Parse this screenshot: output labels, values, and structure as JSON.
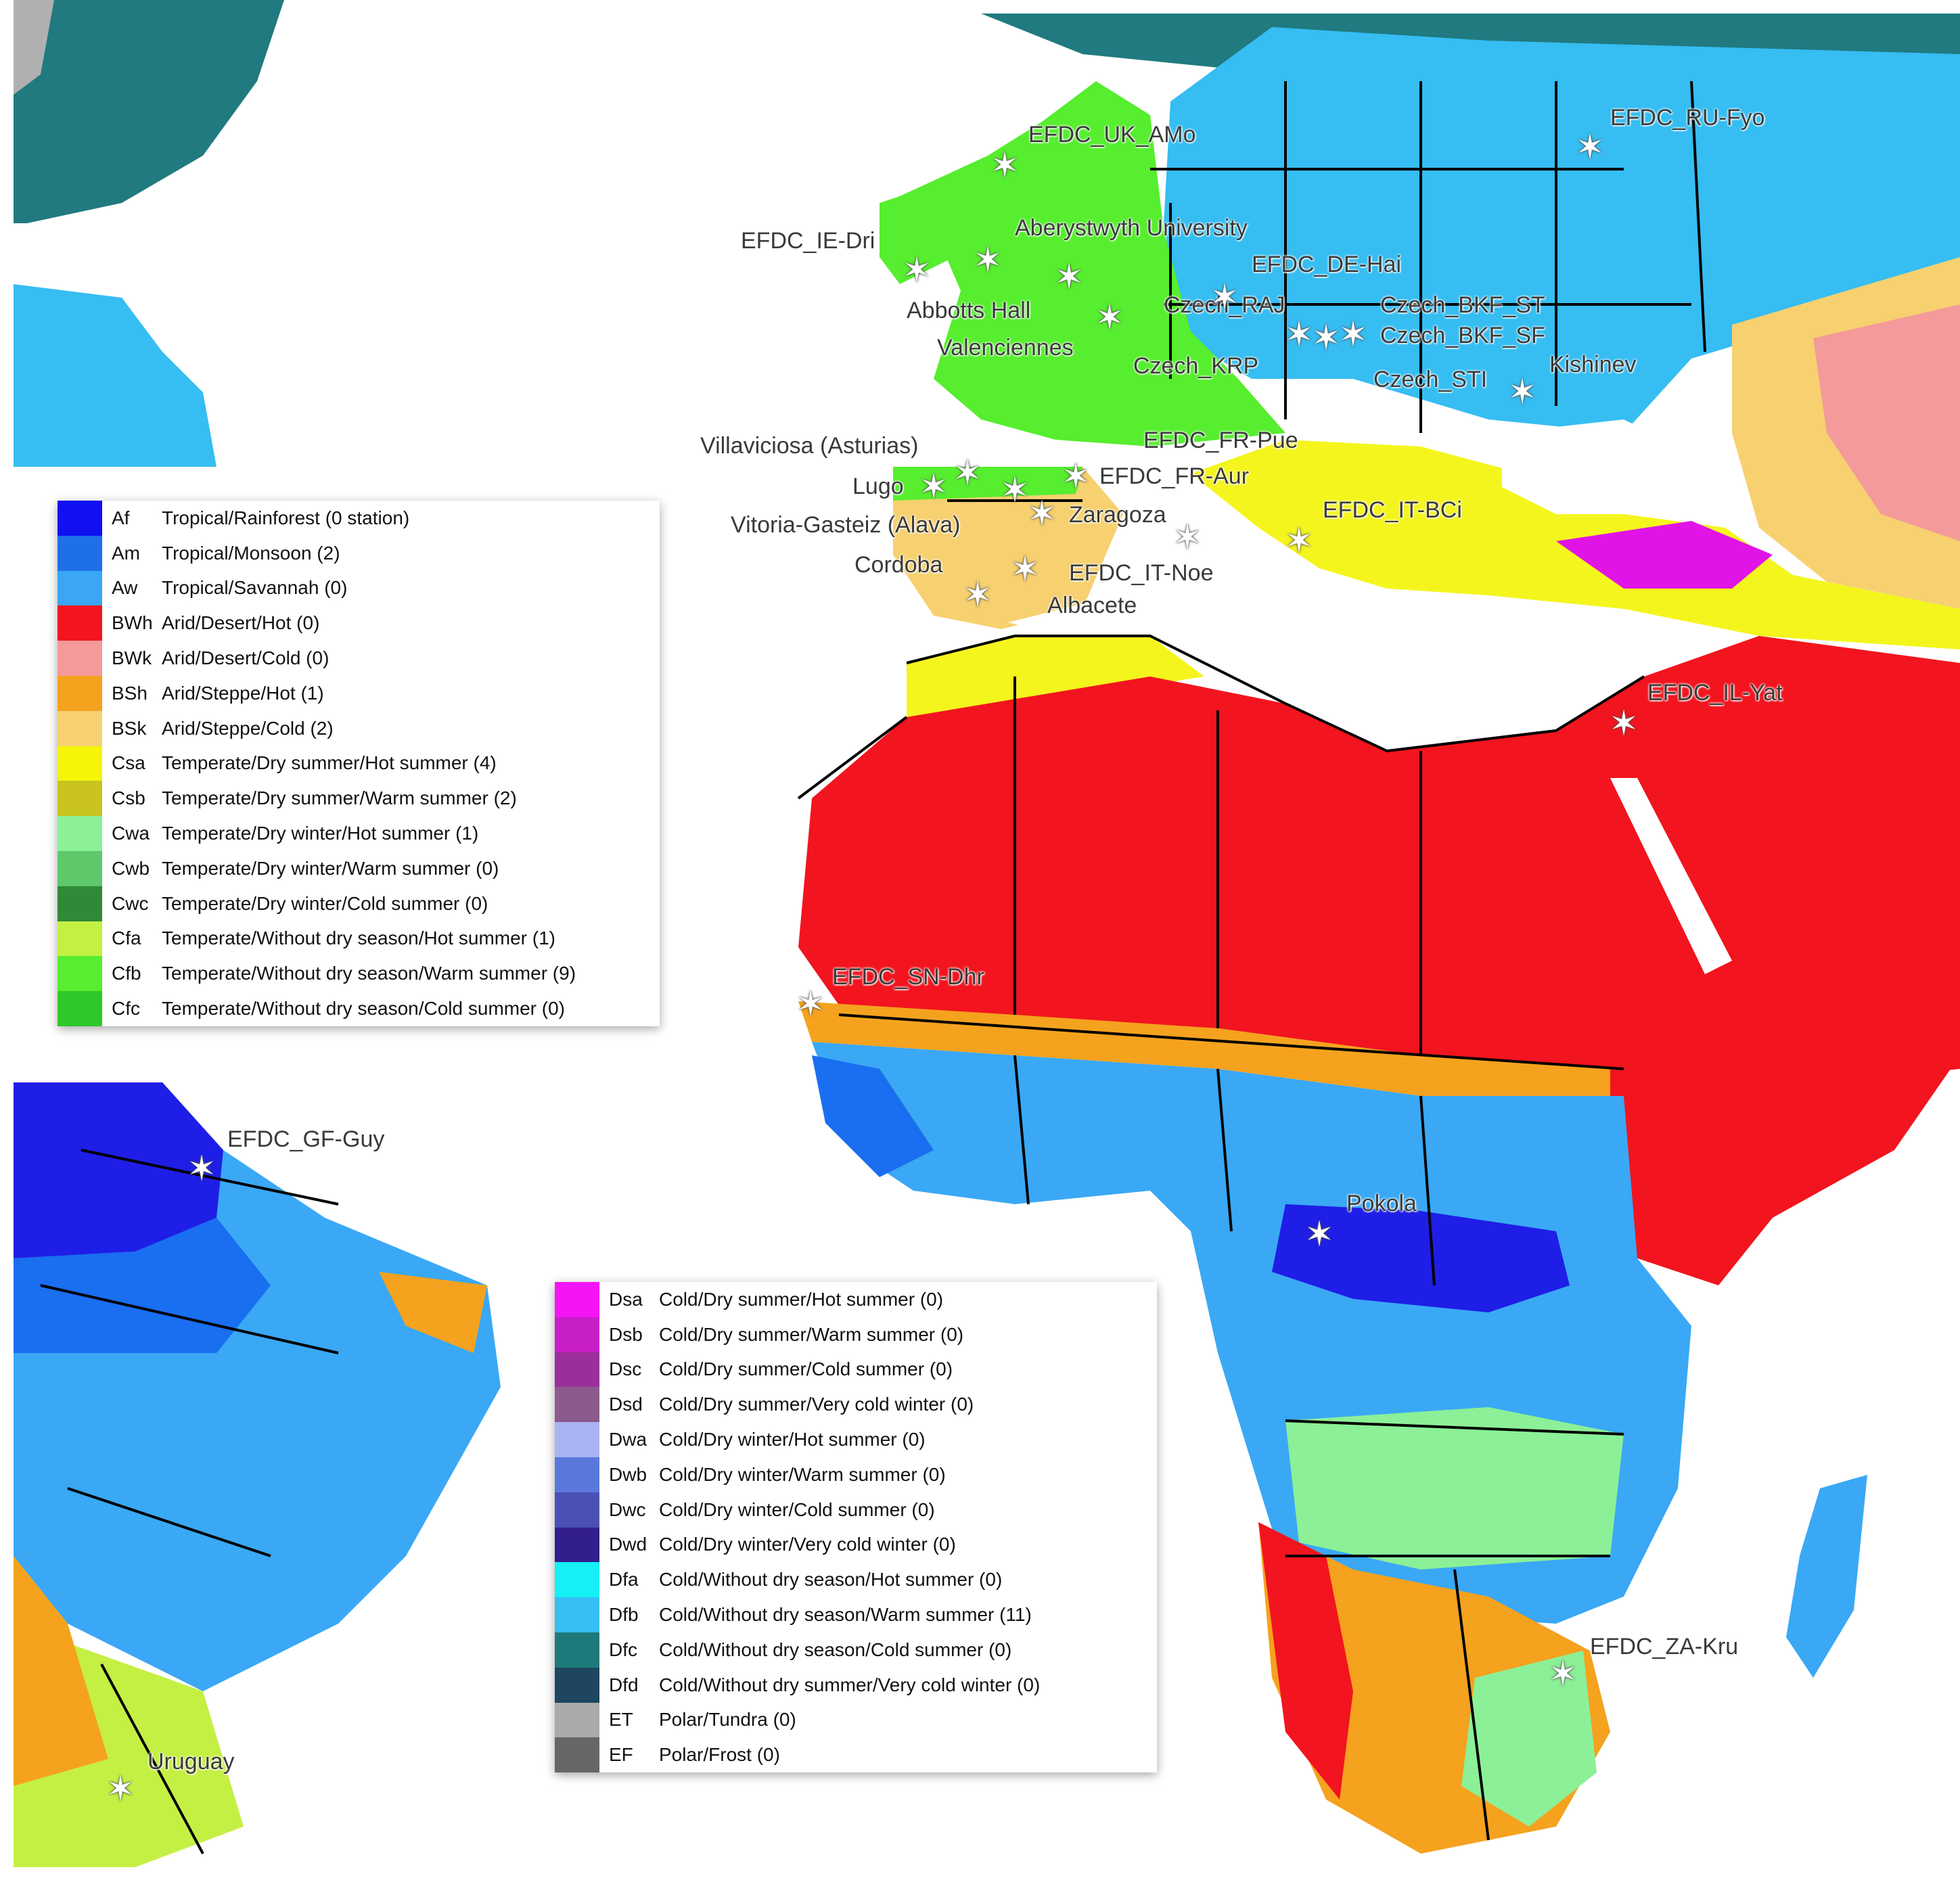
{
  "map": {
    "climate_colors": {
      "Af": "#1e1ee6",
      "Am": "#1a6ef0",
      "Aw": "#3aa8f5",
      "BWh": "#f2141e",
      "BWk": "#f59a9a",
      "BSh": "#f5a21e",
      "BSk": "#f7d070",
      "Csa": "#f5f51e",
      "Csb": "#c9c428",
      "Cwa": "#8cf098",
      "Cwb": "#5cc86a",
      "Cwc": "#2e8a36",
      "Cfa": "#c4f044",
      "Cfb": "#56ee2e",
      "Cfc": "#2ec828",
      "Dfb": "#36bdf2",
      "Dfc": "#207a80",
      "ET": "#b0b0b0",
      "water": "#ffffff",
      "border": "#000000"
    }
  },
  "legend_top": [
    {
      "code": "Af",
      "label": "Tropical/Rainforest (0 station)",
      "color": "#1010f0"
    },
    {
      "code": "Am",
      "label": "Tropical/Monsoon (2)",
      "color": "#1f6fe8"
    },
    {
      "code": "Aw",
      "label": "Tropical/Savannah (0)",
      "color": "#3aa6f5"
    },
    {
      "code": "BWh",
      "label": "Arid/Desert/Hot (0)",
      "color": "#f2141e"
    },
    {
      "code": "BWk",
      "label": "Arid/Desert/Cold (0)",
      "color": "#f59a9a"
    },
    {
      "code": "BSh",
      "label": "Arid/Steppe/Hot (1)",
      "color": "#f5a21e"
    },
    {
      "code": "BSk",
      "label": "Arid/Steppe/Cold (2)",
      "color": "#f7d070"
    },
    {
      "code": "Csa",
      "label": "Temperate/Dry summer/Hot summer (4)",
      "color": "#f5f50a"
    },
    {
      "code": "Csb",
      "label": "Temperate/Dry summer/Warm summer (2)",
      "color": "#c8c31e"
    },
    {
      "code": "Cwa",
      "label": "Temperate/Dry winter/Hot summer (1)",
      "color": "#8cf098"
    },
    {
      "code": "Cwb",
      "label": "Temperate/Dry winter/Warm summer (0)",
      "color": "#5ec86a"
    },
    {
      "code": "Cwc",
      "label": "Temperate/Dry winter/Cold summer (0)",
      "color": "#2e8a36"
    },
    {
      "code": "Cfa",
      "label": "Temperate/Without dry season/Hot summer (1)",
      "color": "#c4f044"
    },
    {
      "code": "Cfb",
      "label": "Temperate/Without dry season/Warm summer (9)",
      "color": "#56ee2e"
    },
    {
      "code": "Cfc",
      "label": "Temperate/Without dry season/Cold summer (0)",
      "color": "#2ec828"
    }
  ],
  "legend_bottom": [
    {
      "code": "Dsa",
      "label": "Cold/Dry summer/Hot summer (0)",
      "color": "#f514f5"
    },
    {
      "code": "Dsb",
      "label": "Cold/Dry summer/Warm summer (0)",
      "color": "#c81ec8"
    },
    {
      "code": "Dsc",
      "label": "Cold/Dry summer/Cold summer (0)",
      "color": "#9a2e9a"
    },
    {
      "code": "Dsd",
      "label": "Cold/Dry summer/Very cold winter (0)",
      "color": "#8c5a8c"
    },
    {
      "code": "Dwa",
      "label": "Cold/Dry winter/Hot summer (0)",
      "color": "#aab4f5"
    },
    {
      "code": "Dwb",
      "label": "Cold/Dry winter/Warm summer (0)",
      "color": "#5a78dc"
    },
    {
      "code": "Dwc",
      "label": "Cold/Dry winter/Cold summer (0)",
      "color": "#4b50b4"
    },
    {
      "code": "Dwd",
      "label": "Cold/Dry winter/Very cold winter (0)",
      "color": "#321e8c"
    },
    {
      "code": "Dfa",
      "label": "Cold/Without dry season/Hot summer (0)",
      "color": "#14f0f5"
    },
    {
      "code": "Dfb",
      "label": "Cold/Without dry season/Warm summer (11)",
      "color": "#36bdf2"
    },
    {
      "code": "Dfc",
      "label": "Cold/Without dry season/Cold summer (0)",
      "color": "#1e7a7a"
    },
    {
      "code": "Dfd",
      "label": "Cold/Without dry summer/Very cold winter (0)",
      "color": "#1e4660"
    },
    {
      "code": "ET",
      "label": "Polar/Tundra (0)",
      "color": "#aaaaaa"
    },
    {
      "code": "EF",
      "label": "Polar/Frost (0)",
      "color": "#666666"
    }
  ],
  "sites": {
    "uk_amo": "EFDC_UK_AMo",
    "ru_fyo": "EFDC_RU-Fyo",
    "aberystwyth": "Aberystwyth University",
    "ie_dri": "EFDC_IE-Dri",
    "de_hai": "EFDC_DE-Hai",
    "abbotts": "Abbotts Hall",
    "czech_raj": "Czech_RAJ",
    "czech_bkf_st": "Czech_BKF_ST",
    "czech_bkf_sf": "Czech_BKF_SF",
    "valenciennes": "Valenciennes",
    "czech_krp": "Czech_KRP",
    "czech_sti": "Czech_STI",
    "kishinev": "Kishinev",
    "villaviciosa": "Villaviciosa (Asturias)",
    "fr_pue": "EFDC_FR-Pue",
    "lugo": "Lugo",
    "fr_aur": "EFDC_FR-Aur",
    "zaragoza": "Zaragoza",
    "it_bci": "EFDC_IT-BCi",
    "vitoria": "Vitoria-Gasteiz (Alava)",
    "cordoba": "Cordoba",
    "it_noe": "EFDC_IT-Noe",
    "albacete": "Albacete",
    "il_yat": "EFDC_IL-Yat",
    "sn_dhr": "EFDC_SN-Dhr",
    "gf_guy": "EFDC_GF-Guy",
    "pokola": "Pokola",
    "za_kru": "EFDC_ZA-Kru",
    "uruguay": "Uruguay"
  }
}
